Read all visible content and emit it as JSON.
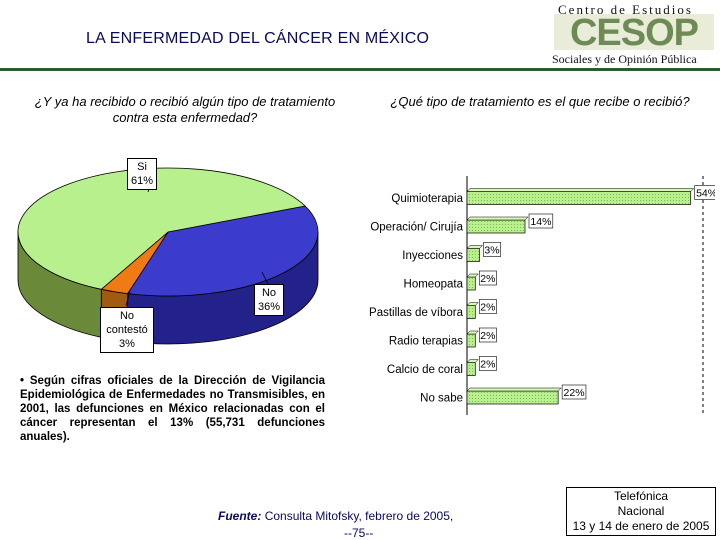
{
  "header": {
    "title": "LA ENFERMEDAD DEL CÁNCER EN MÉXICO",
    "logo_line1": "Centro de Estudios",
    "logo_mark": "CESOP",
    "logo_line2": "Sociales y de Opinión Pública"
  },
  "colors": {
    "yes": "#b9f08e",
    "no": "#3b3bcc",
    "nr": "#a05a12",
    "nr_top": "#f07a14",
    "bars": "#b9f08e",
    "navy": "#0a0a5a",
    "rule": "#2e5a2e"
  },
  "chart_data": [
    {
      "type": "pie",
      "title": "¿Y ya ha recibido o recibió algún tipo de tratamiento contra esta enfermedad?",
      "slices": [
        {
          "label": "Si",
          "value": 61,
          "text": "61%"
        },
        {
          "label": "No",
          "value": 36,
          "text": "36%"
        },
        {
          "label": "No contestó",
          "value": 3,
          "text": "3%"
        }
      ]
    },
    {
      "type": "bar",
      "orientation": "horizontal",
      "title": "¿Qué tipo de tratamiento es el que recibe o recibió?",
      "categories": [
        "Quimioterapia",
        "Operación/ Cirujía",
        "Inyecciones",
        "Homeopata",
        "Pastillas de víbora",
        "Radio terapias",
        "Calcio de coral",
        "No sabe"
      ],
      "values": [
        54,
        14,
        3,
        2,
        2,
        2,
        2,
        22
      ],
      "labels": [
        "54%",
        "14%",
        "3%",
        "2%",
        "2%",
        "2%",
        "2%",
        "22%"
      ],
      "xlim": [
        0,
        56
      ]
    }
  ],
  "note": "• Según cifras oficiales de la Dirección de Vigilancia Epidemiológica de Enfermedades no Transmisibles, en 2001, las defunciones en México relacionadas con el cáncer representan el 13% (55,731 defunciones anuales).",
  "footer": {
    "source_label": "Fuente:",
    "source_text": "Consulta Mitofsky, febrero de 2005,",
    "page": "--75--",
    "phone_line1": "Telefónica",
    "phone_line2": "Nacional",
    "phone_line3": "13 y 14 de enero de 2005"
  }
}
